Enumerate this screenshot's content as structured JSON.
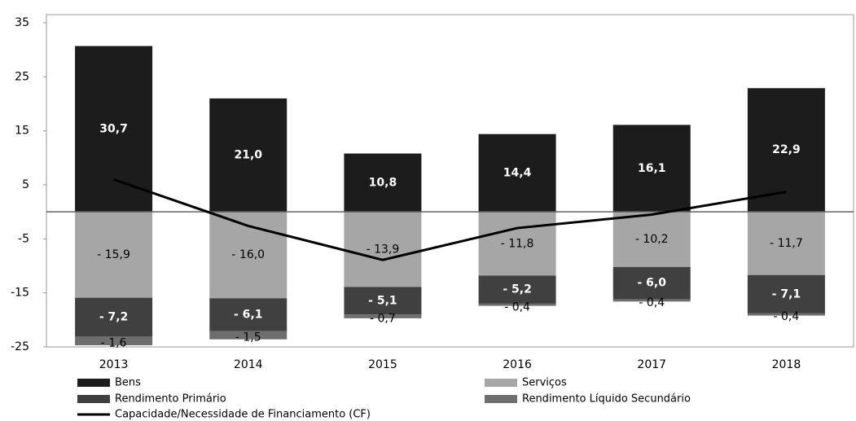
{
  "chart_data": {
    "type": "bar",
    "categories": [
      "2013",
      "2014",
      "2015",
      "2016",
      "2017",
      "2018"
    ],
    "series": [
      {
        "name": "Bens",
        "color": "#1c1c1c",
        "values": [
          30.7,
          21.0,
          10.8,
          14.4,
          16.1,
          22.9
        ],
        "value_labels": [
          "30,7",
          "21,0",
          "10,8",
          "14,4",
          "16,1",
          "22,9"
        ]
      },
      {
        "name": "Serviços",
        "color": "#a6a6a6",
        "values": [
          -15.9,
          -16.0,
          -13.9,
          -11.8,
          -10.2,
          -11.7
        ],
        "value_labels": [
          "- 15,9",
          "- 16,0",
          "- 13,9",
          "- 11,8",
          "- 10,2",
          "- 11,7"
        ]
      },
      {
        "name": "Rendimento Primário",
        "color": "#404040",
        "values": [
          -7.2,
          -6.1,
          -5.1,
          -5.2,
          -6.0,
          -7.1
        ],
        "value_labels": [
          "- 7,2",
          "- 6,1",
          "- 5,1",
          "- 5,2",
          "- 6,0",
          "- 7,1"
        ]
      },
      {
        "name": "Rendimento Líquido Secundário",
        "color": "#6e6e6e",
        "values": [
          -1.6,
          -1.5,
          -0.7,
          -0.4,
          -0.4,
          -0.4
        ],
        "value_labels": [
          "- 1,6",
          "- 1,5",
          "- 0,7",
          "- 0,4",
          "- 0,4",
          "- 0,4"
        ]
      },
      {
        "name": "Capacidade/Necessidade de Financiamento (CF)",
        "type": "line",
        "color": "#000000",
        "values": [
          6.0,
          -2.6,
          -8.9,
          -3.0,
          -0.5,
          3.7
        ]
      }
    ],
    "ylim": [
      -25,
      35
    ],
    "yticks": [
      35,
      25,
      15,
      5,
      -5,
      -15,
      -25
    ]
  }
}
